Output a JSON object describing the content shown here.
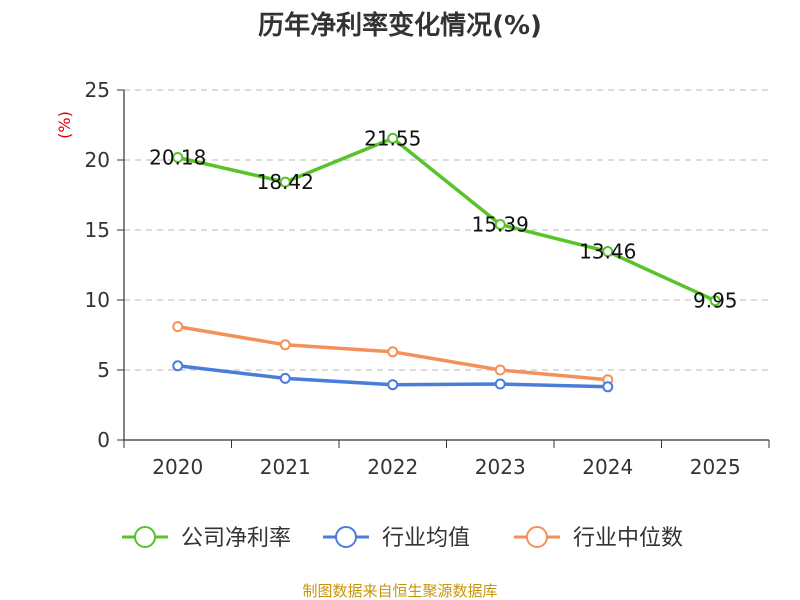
{
  "chart_data": {
    "type": "line",
    "title": "历年净利率变化情况(%)",
    "ylabel": "(%)",
    "xlabel": "",
    "categories": [
      "2020",
      "2021",
      "2022",
      "2023",
      "2024",
      "2025"
    ],
    "ylim": [
      0,
      25
    ],
    "yticks": [
      0,
      5,
      10,
      15,
      20,
      25
    ],
    "grid": true,
    "legend_position": "bottom",
    "series": [
      {
        "name": "公司净利率",
        "color": "#5ac22a",
        "values": [
          20.18,
          18.42,
          21.55,
          15.39,
          13.46,
          9.95
        ],
        "labels": [
          "20.18",
          "18.42",
          "21.55",
          "15.39",
          "13.46",
          "9.95"
        ],
        "show_labels": true
      },
      {
        "name": "行业均值",
        "color": "#4a7ddb",
        "values": [
          5.3,
          4.4,
          3.95,
          4.0,
          3.8,
          null
        ],
        "show_labels": false
      },
      {
        "name": "行业中位数",
        "color": "#f5905a",
        "values": [
          8.1,
          6.8,
          6.3,
          5.0,
          4.3,
          null
        ],
        "show_labels": false
      }
    ]
  },
  "source": "制图数据来自恒生聚源数据库"
}
